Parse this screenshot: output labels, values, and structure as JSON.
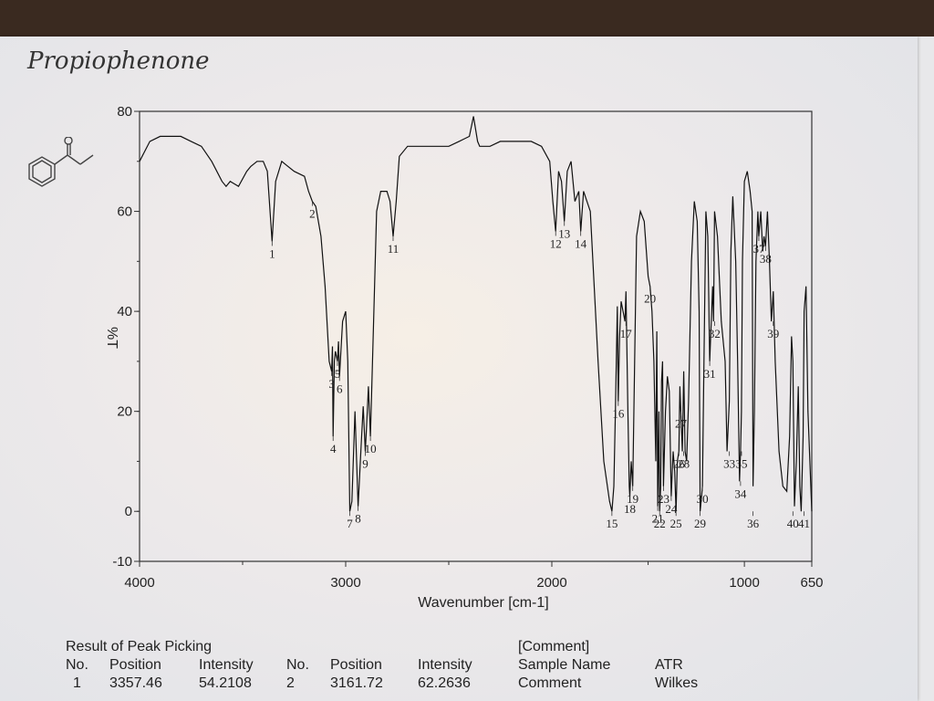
{
  "handwritten_title": "Propiophenone",
  "chart_data": {
    "type": "line",
    "title": "",
    "xlabel": "Wavenumber [cm-1]",
    "ylabel": "%T",
    "xlim": [
      4000,
      650
    ],
    "ylim": [
      -10,
      80
    ],
    "x_ticks": [
      "4000",
      "3000",
      "2000",
      "1000",
      "650"
    ],
    "y_ticks": [
      "-10",
      "0",
      "20",
      "40",
      "60",
      "80"
    ],
    "grid": false,
    "peaks": [
      {
        "no": "1",
        "x": 3357,
        "y": 54
      },
      {
        "no": "2",
        "x": 3162,
        "y": 62
      },
      {
        "no": "3",
        "x": 3068,
        "y": 28
      },
      {
        "no": "4",
        "x": 3061,
        "y": 15
      },
      {
        "no": "5",
        "x": 3040,
        "y": 30
      },
      {
        "no": "6",
        "x": 3030,
        "y": 27
      },
      {
        "no": "7",
        "x": 2980,
        "y": 0
      },
      {
        "no": "8",
        "x": 2940,
        "y": 1
      },
      {
        "no": "9",
        "x": 2905,
        "y": 12
      },
      {
        "no": "10",
        "x": 2880,
        "y": 15
      },
      {
        "no": "11",
        "x": 2770,
        "y": 55
      },
      {
        "no": "12",
        "x": 1980,
        "y": 56
      },
      {
        "no": "13",
        "x": 1935,
        "y": 58
      },
      {
        "no": "14",
        "x": 1850,
        "y": 56
      },
      {
        "no": "15",
        "x": 1688,
        "y": 0
      },
      {
        "no": "16",
        "x": 1655,
        "y": 22
      },
      {
        "no": "17",
        "x": 1615,
        "y": 38
      },
      {
        "no": "18",
        "x": 1595,
        "y": 3
      },
      {
        "no": "19",
        "x": 1580,
        "y": 5
      },
      {
        "no": "20",
        "x": 1490,
        "y": 45
      },
      {
        "no": "21",
        "x": 1450,
        "y": 1
      },
      {
        "no": "22",
        "x": 1440,
        "y": 0
      },
      {
        "no": "23",
        "x": 1420,
        "y": 5
      },
      {
        "no": "24",
        "x": 1380,
        "y": 3
      },
      {
        "no": "25",
        "x": 1355,
        "y": 0
      },
      {
        "no": "26",
        "x": 1340,
        "y": 12
      },
      {
        "no": "27",
        "x": 1330,
        "y": 20
      },
      {
        "no": "28",
        "x": 1315,
        "y": 12
      },
      {
        "no": "29",
        "x": 1230,
        "y": 0
      },
      {
        "no": "30",
        "x": 1218,
        "y": 5
      },
      {
        "no": "31",
        "x": 1180,
        "y": 30
      },
      {
        "no": "32",
        "x": 1155,
        "y": 38
      },
      {
        "no": "33",
        "x": 1078,
        "y": 12
      },
      {
        "no": "34",
        "x": 1020,
        "y": 6
      },
      {
        "no": "35",
        "x": 1015,
        "y": 12
      },
      {
        "no": "36",
        "x": 955,
        "y": 0
      },
      {
        "no": "37",
        "x": 925,
        "y": 55
      },
      {
        "no": "38",
        "x": 890,
        "y": 53
      },
      {
        "no": "39",
        "x": 850,
        "y": 38
      },
      {
        "no": "40",
        "x": 748,
        "y": 0
      },
      {
        "no": "41",
        "x": 690,
        "y": 0
      }
    ],
    "series": [
      {
        "x": [
          4000,
          3950,
          3900,
          3850,
          3800,
          3750,
          3700,
          3650,
          3600,
          3580,
          3560,
          3520,
          3480,
          3460,
          3430,
          3400,
          3380,
          3357,
          3340,
          3310,
          3280,
          3250,
          3200,
          3180,
          3162,
          3145,
          3120,
          3100,
          3080,
          3068,
          3064,
          3061,
          3055,
          3050,
          3040,
          3035,
          3030,
          3015,
          3000,
          2990,
          2980,
          2970,
          2955,
          2940,
          2925,
          2915,
          2905,
          2895,
          2890,
          2880,
          2870,
          2850,
          2830,
          2800,
          2785,
          2770,
          2755,
          2740,
          2700,
          2600,
          2500,
          2450,
          2400,
          2380,
          2360,
          2350,
          2300,
          2250,
          2200,
          2150,
          2100,
          2050,
          2010,
          1995,
          1980,
          1965,
          1950,
          1935,
          1920,
          1900,
          1880,
          1860,
          1850,
          1835,
          1800,
          1760,
          1730,
          1700,
          1688,
          1678,
          1670,
          1660,
          1655,
          1648,
          1640,
          1630,
          1620,
          1615,
          1605,
          1598,
          1595,
          1588,
          1580,
          1570,
          1560,
          1540,
          1520,
          1500,
          1490,
          1480,
          1470,
          1460,
          1455,
          1450,
          1444,
          1440,
          1435,
          1430,
          1425,
          1420,
          1410,
          1400,
          1390,
          1380,
          1370,
          1362,
          1355,
          1348,
          1340,
          1335,
          1330,
          1322,
          1315,
          1308,
          1300,
          1290,
          1275,
          1260,
          1245,
          1235,
          1230,
          1222,
          1218,
          1210,
          1200,
          1190,
          1180,
          1172,
          1165,
          1160,
          1155,
          1140,
          1120,
          1100,
          1090,
          1078,
          1070,
          1060,
          1045,
          1035,
          1025,
          1020,
          1015,
          1010,
          1000,
          985,
          970,
          960,
          955,
          948,
          940,
          930,
          925,
          915,
          905,
          898,
          890,
          880,
          870,
          860,
          850,
          840,
          820,
          800,
          780,
          765,
          755,
          748,
          740,
          730,
          720,
          712,
          705,
          695,
          690,
          680,
          670,
          660,
          650
        ],
        "y": [
          70,
          74,
          75,
          75,
          75,
          74,
          73,
          70,
          66,
          65,
          66,
          65,
          68,
          69,
          70,
          70,
          68,
          54,
          66,
          70,
          69,
          68,
          67,
          64,
          62,
          61,
          55,
          45,
          30,
          28,
          33,
          15,
          30,
          32,
          30,
          34,
          27,
          38,
          40,
          30,
          0,
          2,
          20,
          1,
          13,
          21,
          12,
          20,
          25,
          15,
          30,
          60,
          64,
          64,
          62,
          55,
          62,
          71,
          73,
          73,
          73,
          74,
          75,
          79,
          74,
          73,
          73,
          74,
          74,
          74,
          74,
          73,
          70,
          62,
          56,
          68,
          66,
          58,
          68,
          70,
          62,
          64,
          56,
          64,
          60,
          30,
          10,
          2,
          0,
          5,
          20,
          41,
          22,
          35,
          42,
          40,
          38,
          44,
          20,
          5,
          3,
          10,
          5,
          30,
          55,
          60,
          58,
          47,
          45,
          40,
          30,
          10,
          36,
          1,
          20,
          0,
          5,
          26,
          30,
          5,
          20,
          27,
          24,
          3,
          12,
          8,
          0,
          10,
          12,
          25,
          20,
          12,
          28,
          12,
          10,
          22,
          50,
          62,
          58,
          40,
          0,
          3,
          5,
          30,
          60,
          55,
          30,
          38,
          45,
          38,
          60,
          55,
          38,
          30,
          12,
          22,
          52,
          63,
          50,
          30,
          6,
          12,
          20,
          50,
          66,
          68,
          64,
          60,
          5,
          20,
          50,
          60,
          55,
          60,
          52,
          55,
          53,
          60,
          50,
          38,
          44,
          30,
          12,
          5,
          4,
          15,
          35,
          30,
          1,
          10,
          25,
          5,
          0,
          15,
          40,
          45,
          20,
          10,
          0
        ]
      }
    ]
  },
  "table": {
    "heading": "Result of Peak Picking",
    "headers": [
      "No.",
      "Position",
      "Intensity",
      "No.",
      "Position",
      "Intensity"
    ],
    "row1": [
      "1",
      "3357.46",
      "54.2108",
      "2",
      "3161.72",
      "62.2636"
    ],
    "comment_heading": "[Comment]",
    "comment_rows": [
      [
        "Sample Name",
        "ATR"
      ],
      [
        "Comment",
        "Wilkes"
      ]
    ]
  }
}
